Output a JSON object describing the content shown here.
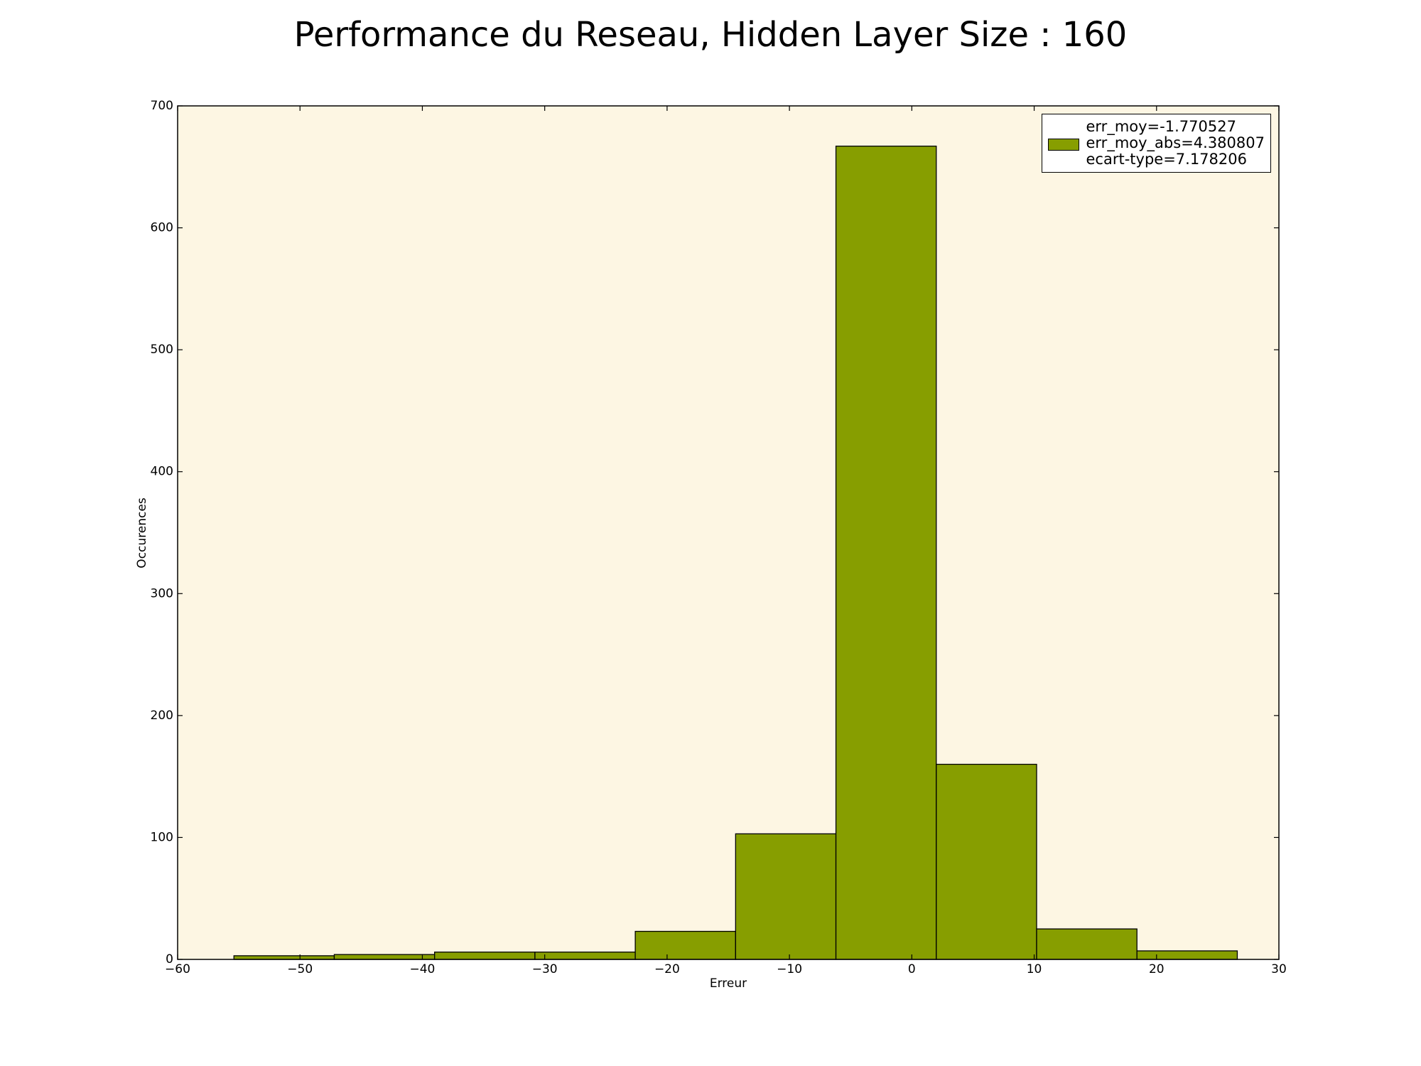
{
  "chart_data": {
    "type": "histogram",
    "title": "Performance du Reseau, Hidden Layer Size : 160",
    "x_label": "Erreur",
    "y_label": "Occurences",
    "bins": [
      -55.4,
      -47.2,
      -39.0,
      -30.8,
      -22.6,
      -14.4,
      -6.2,
      2.0,
      10.2,
      18.4,
      26.6
    ],
    "series": [
      {
        "name": "err_moy=-1.770527\nerr_moy_abs=4.380807\necart-type=7.178206",
        "color": "#879e00",
        "values": [
          3,
          4,
          6,
          6,
          23,
          103,
          667,
          160,
          25,
          7
        ]
      }
    ],
    "xlim": [
      -60,
      30
    ],
    "xticks": [
      {
        "value": -60,
        "label": "−60"
      },
      {
        "value": -50,
        "label": "−50"
      },
      {
        "value": -40,
        "label": "−40"
      },
      {
        "value": -30,
        "label": "−30"
      },
      {
        "value": -20,
        "label": "−20"
      },
      {
        "value": -10,
        "label": "−10"
      },
      0,
      10,
      20,
      30
    ],
    "ylim": [
      0,
      700
    ],
    "yticks": [
      0,
      100,
      200,
      300,
      400,
      500,
      600,
      700
    ],
    "background": "#fdf6e3",
    "legend": "upper right"
  }
}
